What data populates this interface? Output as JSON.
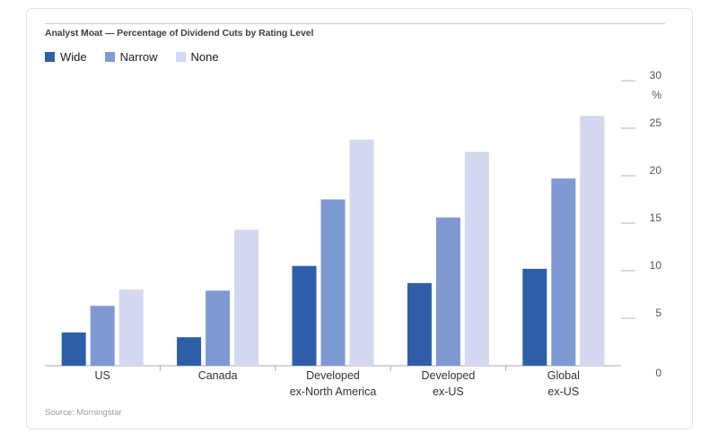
{
  "chart_data": {
    "type": "bar",
    "title": "Analyst Moat — Percentage of Dividend Cuts by Rating Level",
    "ylabel": "%",
    "ylim": [
      0,
      30
    ],
    "yticks": [
      0,
      5,
      10,
      15,
      20,
      25,
      30
    ],
    "legend_position": "top-left",
    "grid": false,
    "categories": [
      [
        "US"
      ],
      [
        "Canada"
      ],
      [
        "Developed",
        "ex-North America"
      ],
      [
        "Developed",
        "ex-US"
      ],
      [
        "Global",
        "ex-US"
      ]
    ],
    "series": [
      {
        "name": "Wide",
        "color": "#2f5ea8",
        "values": [
          3.5,
          3.0,
          10.5,
          8.7,
          10.2
        ]
      },
      {
        "name": "Narrow",
        "color": "#7f99d3",
        "values": [
          6.3,
          7.9,
          17.5,
          15.6,
          19.7
        ]
      },
      {
        "name": "None",
        "color": "#d3d7ef",
        "values": [
          8.0,
          14.3,
          23.8,
          22.5,
          26.3
        ]
      }
    ],
    "source": "Source: Morningstar"
  }
}
